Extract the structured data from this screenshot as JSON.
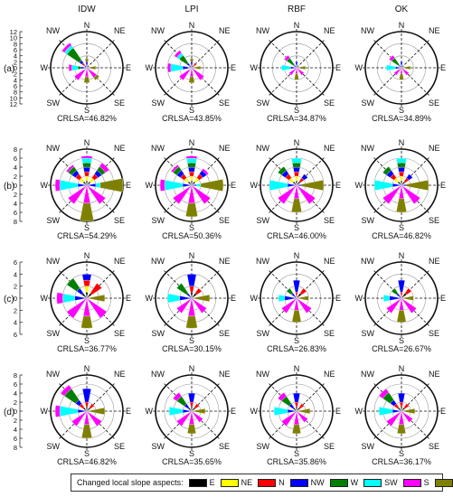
{
  "columns": [
    "IDW",
    "LPI",
    "RBF",
    "OK"
  ],
  "rows": [
    {
      "label": "(a)",
      "max": 12,
      "ticks": [
        "12",
        "10",
        "8",
        "6",
        "4",
        "2",
        "0",
        "2",
        "4",
        "6",
        "8",
        "10",
        "12"
      ]
    },
    {
      "label": "(b)",
      "max": 8,
      "ticks": [
        "8",
        "6",
        "4",
        "2",
        "0",
        "2",
        "4",
        "6",
        "8"
      ]
    },
    {
      "label": "(c)",
      "max": 6,
      "ticks": [
        "6",
        "4",
        "2",
        "0",
        "2",
        "4",
        "6"
      ]
    },
    {
      "label": "(d)",
      "max": 8,
      "ticks": [
        "8",
        "6",
        "4",
        "2",
        "0",
        "2",
        "4",
        "6",
        "8"
      ]
    }
  ],
  "direction_labels": {
    "N": "N",
    "NE": "NE",
    "E": "E",
    "SE": "SE",
    "S": "S",
    "SW": "SW",
    "W": "W",
    "NW": "NW"
  },
  "legend": {
    "title": "Changed local slope aspects:",
    "items": [
      {
        "label": "E",
        "color": "#000000"
      },
      {
        "label": "NE",
        "color": "#ffff00"
      },
      {
        "label": "N",
        "color": "#ff0000"
      },
      {
        "label": "NW",
        "color": "#0000ff"
      },
      {
        "label": "W",
        "color": "#008000"
      },
      {
        "label": "SW",
        "color": "#00ffff"
      },
      {
        "label": "S",
        "color": "#ff00ff"
      },
      {
        "label": "SE",
        "color": "#808000"
      }
    ]
  },
  "chart_data": {
    "type": "rose",
    "note_units": "lengths in counts along radial axis",
    "sectors": [
      "N",
      "NE",
      "E",
      "SE",
      "S",
      "SW",
      "W",
      "NW"
    ],
    "series_order": [
      "E",
      "NE",
      "N",
      "NW",
      "W",
      "SW",
      "S",
      "SE"
    ],
    "panels": [
      {
        "row": "(a)",
        "method": "IDW",
        "crlsa": "CRLSA=46.82%",
        "values": {
          "N": {
            "NW": 2,
            "SE": 1
          },
          "NE": {
            "E": 1
          },
          "E": {
            "SE": 3
          },
          "SE": {
            "S": 4,
            "SE": 1
          },
          "S": {
            "S": 3,
            "SE": 2
          },
          "SW": {
            "S": 4,
            "SW": 1
          },
          "W": {
            "NW": 2,
            "W": 1,
            "SW": 2,
            "S": 1
          },
          "NW": {
            "E": 1,
            "N": 1,
            "NW": 1,
            "W": 5,
            "SW": 1,
            "S": 1
          }
        }
      },
      {
        "row": "(a)",
        "method": "LPI",
        "crlsa": "CRLSA=43.85%",
        "values": {
          "N": {
            "NW": 2,
            "SE": 1
          },
          "NE": {
            "E": 1,
            "N": 1
          },
          "E": {
            "SE": 3
          },
          "SE": {
            "S": 5
          },
          "S": {
            "S": 3,
            "SE": 2
          },
          "SW": {
            "S": 4,
            "SW": 1
          },
          "W": {
            "N": 1,
            "NW": 2,
            "SW": 4,
            "S": 1
          },
          "NW": {
            "E": 1,
            "NW": 1,
            "W": 3,
            "SW": 1,
            "S": 1
          }
        }
      },
      {
        "row": "(a)",
        "method": "RBF",
        "crlsa": "CRLSA=34.87%",
        "values": {
          "N": {
            "NW": 2
          },
          "NE": {
            "E": 1
          },
          "E": {
            "SE": 3
          },
          "SE": {
            "S": 3
          },
          "S": {
            "S": 2,
            "SE": 2
          },
          "SW": {
            "S": 3
          },
          "W": {
            "NW": 2,
            "SW": 3
          },
          "NW": {
            "NW": 1,
            "W": 3,
            "S": 1
          }
        }
      },
      {
        "row": "(a)",
        "method": "OK",
        "crlsa": "CRLSA=34.89%",
        "values": {
          "N": {
            "NW": 2
          },
          "NE": {
            "E": 1
          },
          "E": {
            "SE": 3
          },
          "SE": {
            "S": 3
          },
          "S": {
            "S": 2,
            "SE": 2
          },
          "SW": {
            "S": 3
          },
          "W": {
            "NW": 2,
            "SW": 3
          },
          "NW": {
            "NW": 1,
            "W": 3,
            "S": 1
          }
        }
      },
      {
        "row": "(b)",
        "method": "IDW",
        "crlsa": "CRLSA=54.29%",
        "values": {
          "N": {
            "E": 1,
            "NE": 1,
            "N": 1,
            "NW": 1,
            "W": 1,
            "SW": 1,
            "S": 0.5
          },
          "NE": {
            "E": 1,
            "NE": 1,
            "N": 1,
            "NW": 1,
            "W": 1,
            "S": 1
          },
          "E": {
            "NW": 2,
            "SW": 1,
            "SE": 5
          },
          "SE": {
            "S": 5
          },
          "S": {
            "S": 4,
            "SE": 4
          },
          "SW": {
            "S": 5
          },
          "W": {
            "NW": 2,
            "SW": 4,
            "S": 1
          },
          "NW": {
            "E": 1,
            "NE": 1,
            "N": 1,
            "NW": 1,
            "W": 1,
            "S": 0.5
          }
        }
      },
      {
        "row": "(b)",
        "method": "LPI",
        "crlsa": "CRLSA=50.36%",
        "values": {
          "N": {
            "E": 1,
            "NE": 1,
            "N": 1,
            "NW": 1,
            "W": 1,
            "SW": 1,
            "S": 0.5
          },
          "NE": {
            "E": 1,
            "NE": 1,
            "N": 1,
            "NW": 1,
            "S": 0.5
          },
          "E": {
            "NW": 1,
            "SW": 1,
            "SE": 5
          },
          "SE": {
            "S": 5
          },
          "S": {
            "S": 4,
            "SE": 3
          },
          "SW": {
            "S": 5
          },
          "W": {
            "NW": 2,
            "SW": 4,
            "S": 1
          },
          "NW": {
            "E": 1,
            "NE": 1,
            "N": 1,
            "NW": 1,
            "W": 1,
            "S": 0.5
          }
        }
      },
      {
        "row": "(b)",
        "method": "RBF",
        "crlsa": "CRLSA=46.00%",
        "values": {
          "N": {
            "E": 1,
            "NE": 1,
            "N": 1,
            "NW": 1,
            "W": 1,
            "SW": 1
          },
          "NE": {
            "E": 1,
            "N": 1,
            "NW": 1
          },
          "E": {
            "NW": 1,
            "SE": 5
          },
          "SE": {
            "S": 5
          },
          "S": {
            "S": 3,
            "SE": 3
          },
          "SW": {
            "S": 5
          },
          "W": {
            "NW": 2,
            "SW": 4
          },
          "NW": {
            "E": 1,
            "NE": 1,
            "N": 1,
            "NW": 1,
            "W": 1
          }
        }
      },
      {
        "row": "(b)",
        "method": "OK",
        "crlsa": "CRLSA=46.82%",
        "values": {
          "N": {
            "E": 1,
            "NE": 1,
            "N": 1,
            "NW": 1,
            "W": 1,
            "SW": 1
          },
          "NE": {
            "E": 1,
            "N": 1,
            "NW": 1
          },
          "E": {
            "NW": 1,
            "SE": 5
          },
          "SE": {
            "S": 5
          },
          "S": {
            "S": 3,
            "SE": 3
          },
          "SW": {
            "S": 5
          },
          "W": {
            "NW": 2,
            "SW": 4
          },
          "NW": {
            "E": 1,
            "NE": 1,
            "N": 1,
            "NW": 1,
            "W": 1
          }
        }
      },
      {
        "row": "(c)",
        "method": "IDW",
        "crlsa": "CRLSA=36.77%",
        "values": {
          "N": {
            "E": 1,
            "NE": 1,
            "N": 1,
            "NW": 1
          },
          "NE": {
            "E": 1,
            "N": 2
          },
          "E": {
            "SE": 3
          },
          "SE": {
            "S": 4
          },
          "S": {
            "S": 3,
            "SE": 2
          },
          "SW": {
            "S": 4
          },
          "W": {
            "NW": 2,
            "SW": 2,
            "S": 1
          },
          "NW": {
            "E": 1,
            "NW": 1,
            "W": 2
          }
        }
      },
      {
        "row": "(c)",
        "method": "LPI",
        "crlsa": "CRLSA=30.15%",
        "values": {
          "N": {
            "E": 1,
            "N": 1,
            "NW": 2
          },
          "NE": {
            "E": 1,
            "N": 1
          },
          "E": {
            "SE": 3
          },
          "SE": {
            "S": 3
          },
          "S": {
            "S": 3,
            "SE": 2
          },
          "SW": {
            "S": 3
          },
          "W": {
            "NW": 2,
            "SW": 2
          },
          "NW": {
            "NW": 1,
            "W": 2
          }
        }
      },
      {
        "row": "(c)",
        "method": "RBF",
        "crlsa": "CRLSA=26.83%",
        "values": {
          "N": {
            "N": 1,
            "NW": 2
          },
          "NE": {
            "E": 1,
            "N": 1
          },
          "E": {
            "SE": 2
          },
          "SE": {
            "S": 3
          },
          "S": {
            "S": 2,
            "SE": 2
          },
          "SW": {
            "S": 3
          },
          "W": {
            "NW": 2,
            "SW": 1
          },
          "NW": {
            "NW": 1,
            "W": 1
          }
        }
      },
      {
        "row": "(c)",
        "method": "OK",
        "crlsa": "CRLSA=26.67%",
        "values": {
          "N": {
            "N": 1,
            "NW": 2
          },
          "NE": {
            "E": 1,
            "N": 1
          },
          "E": {
            "SE": 2
          },
          "SE": {
            "S": 3
          },
          "S": {
            "S": 2,
            "SE": 2
          },
          "SW": {
            "S": 3
          },
          "W": {
            "NW": 2,
            "SW": 1
          },
          "NW": {
            "NW": 1,
            "W": 1
          }
        }
      },
      {
        "row": "(d)",
        "method": "IDW",
        "crlsa": "CRLSA=46.82%",
        "values": {
          "N": {
            "E": 1,
            "N": 1,
            "NW": 3
          },
          "NE": {
            "E": 1,
            "N": 1
          },
          "E": {
            "SE": 4
          },
          "SE": {
            "S": 4
          },
          "S": {
            "S": 3,
            "SE": 3
          },
          "SW": {
            "S": 4
          },
          "W": {
            "NW": 2,
            "SW": 4,
            "S": 1
          },
          "NW": {
            "E": 1,
            "N": 1,
            "NW": 1,
            "W": 3,
            "S": 1
          }
        }
      },
      {
        "row": "(d)",
        "method": "LPI",
        "crlsa": "CRLSA=35.65%",
        "values": {
          "N": {
            "E": 1,
            "N": 1,
            "NW": 2
          },
          "NE": {
            "E": 1,
            "N": 1
          },
          "E": {
            "SE": 3
          },
          "SE": {
            "S": 3
          },
          "S": {
            "S": 3,
            "SE": 2
          },
          "SW": {
            "S": 4
          },
          "W": {
            "NW": 2,
            "SW": 3
          },
          "NW": {
            "E": 1,
            "NW": 1,
            "W": 2,
            "S": 1
          }
        }
      },
      {
        "row": "(d)",
        "method": "RBF",
        "crlsa": "CRLSA=35.86%",
        "values": {
          "N": {
            "E": 1,
            "N": 1,
            "NW": 2
          },
          "NE": {
            "E": 1,
            "N": 1
          },
          "E": {
            "SE": 3
          },
          "SE": {
            "S": 3
          },
          "S": {
            "S": 3,
            "SE": 2
          },
          "SW": {
            "S": 4
          },
          "W": {
            "NW": 2,
            "SW": 3
          },
          "NW": {
            "E": 1,
            "NW": 1,
            "W": 2,
            "S": 1
          }
        }
      },
      {
        "row": "(d)",
        "method": "OK",
        "crlsa": "CRLSA=36.17%",
        "values": {
          "N": {
            "E": 1,
            "N": 1,
            "NW": 2
          },
          "NE": {
            "E": 1,
            "N": 1
          },
          "E": {
            "SE": 3
          },
          "SE": {
            "S": 3
          },
          "S": {
            "S": 3,
            "SE": 2
          },
          "SW": {
            "S": 4
          },
          "W": {
            "NW": 2,
            "SW": 3
          },
          "NW": {
            "E": 1,
            "N": 1,
            "NW": 1,
            "W": 2,
            "S": 1
          }
        }
      }
    ]
  }
}
